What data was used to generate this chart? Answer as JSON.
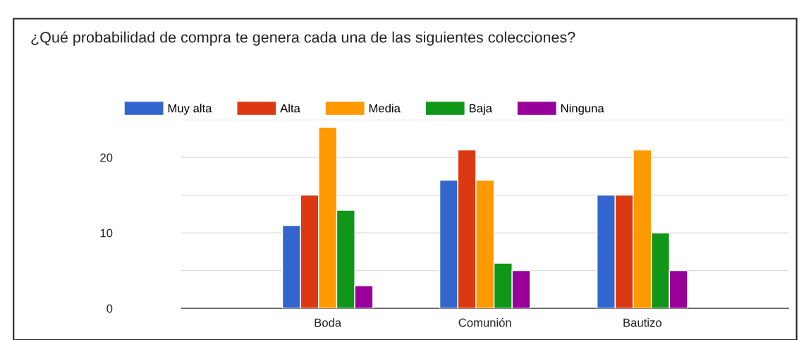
{
  "chart_data": {
    "type": "bar",
    "title": "¿Qué probabilidad de compra te genera cada una de las siguientes colecciones?",
    "categories": [
      "Boda",
      "Comunión",
      "Bautizo"
    ],
    "series": [
      {
        "name": "Muy alta",
        "color": "#3366cc",
        "values": [
          11,
          17,
          15
        ]
      },
      {
        "name": "Alta",
        "color": "#dc3912",
        "values": [
          15,
          21,
          15
        ]
      },
      {
        "name": "Media",
        "color": "#ff9900",
        "values": [
          24,
          17,
          21
        ]
      },
      {
        "name": "Baja",
        "color": "#109618",
        "values": [
          13,
          6,
          10
        ]
      },
      {
        "name": "Ninguna",
        "color": "#990099",
        "values": [
          3,
          5,
          5
        ]
      }
    ],
    "ylim": [
      0,
      25
    ],
    "yticks": [
      0,
      {
        "value": 5,
        "label": null
      },
      10,
      {
        "value": 15,
        "label": null
      },
      20,
      {
        "value": 25,
        "label": null
      }
    ],
    "grid": "y",
    "legend": "top left"
  }
}
